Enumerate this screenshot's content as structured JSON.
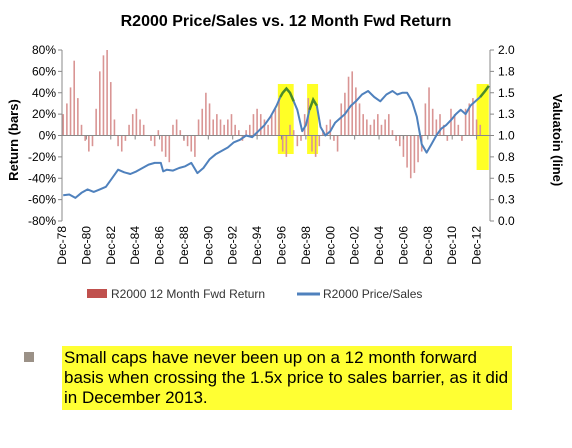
{
  "chart_data": {
    "type": "bar+line",
    "title": "R2000 Price/Sales vs. 12 Month Fwd Return",
    "ylabel_left": "Return (bars)",
    "ylabel_right": "Valuatoin (line)",
    "y_left_ticks": [
      "80%",
      "60%",
      "40%",
      "20%",
      "0%",
      "-20%",
      "-40%",
      "-60%",
      "-80%"
    ],
    "y_right_ticks": [
      "2.0",
      "1.8",
      "1.5",
      "1.3",
      "1.0",
      "0.8",
      "0.5",
      "0.3",
      "0.0"
    ],
    "y_left_range": [
      -80,
      80
    ],
    "y_right_range": [
      0,
      2
    ],
    "x_ticks": [
      "Dec-78",
      "Dec-80",
      "Dec-82",
      "Dec-84",
      "Dec-86",
      "Dec-88",
      "Dec-90",
      "Dec-92",
      "Dec-94",
      "Dec-96",
      "Dec-98",
      "Dec-00",
      "Dec-02",
      "Dec-04",
      "Dec-06",
      "Dec-08",
      "Dec-10",
      "Dec-12"
    ],
    "x_range": [
      1978.9,
      2014.0
    ],
    "series": [
      {
        "name": "R2000 12 Month Fwd Return",
        "type": "bar",
        "color": "#d99594",
        "points": [
          [
            1979.0,
            20
          ],
          [
            1979.3,
            30
          ],
          [
            1979.6,
            45
          ],
          [
            1979.9,
            70
          ],
          [
            1980.2,
            35
          ],
          [
            1980.5,
            10
          ],
          [
            1980.8,
            -5
          ],
          [
            1981.1,
            -15
          ],
          [
            1981.4,
            -10
          ],
          [
            1981.7,
            25
          ],
          [
            1982.0,
            60
          ],
          [
            1982.3,
            75
          ],
          [
            1982.6,
            80
          ],
          [
            1982.9,
            50
          ],
          [
            1983.2,
            15
          ],
          [
            1983.5,
            -10
          ],
          [
            1983.8,
            -15
          ],
          [
            1984.1,
            -5
          ],
          [
            1984.4,
            10
          ],
          [
            1984.7,
            20
          ],
          [
            1985.0,
            25
          ],
          [
            1985.3,
            15
          ],
          [
            1985.6,
            10
          ],
          [
            1985.9,
            0
          ],
          [
            1986.2,
            -5
          ],
          [
            1986.5,
            -10
          ],
          [
            1986.8,
            5
          ],
          [
            1987.1,
            -15
          ],
          [
            1987.4,
            -20
          ],
          [
            1987.7,
            -25
          ],
          [
            1988.0,
            10
          ],
          [
            1988.3,
            15
          ],
          [
            1988.6,
            5
          ],
          [
            1988.9,
            -5
          ],
          [
            1989.2,
            -10
          ],
          [
            1989.5,
            -15
          ],
          [
            1989.8,
            -20
          ],
          [
            1990.1,
            15
          ],
          [
            1990.4,
            25
          ],
          [
            1990.7,
            40
          ],
          [
            1991.0,
            30
          ],
          [
            1991.3,
            15
          ],
          [
            1991.6,
            20
          ],
          [
            1991.9,
            15
          ],
          [
            1992.2,
            10
          ],
          [
            1992.5,
            15
          ],
          [
            1992.8,
            20
          ],
          [
            1993.1,
            10
          ],
          [
            1993.4,
            5
          ],
          [
            1993.7,
            -5
          ],
          [
            1994.0,
            5
          ],
          [
            1994.3,
            10
          ],
          [
            1994.6,
            20
          ],
          [
            1994.9,
            25
          ],
          [
            1995.2,
            20
          ],
          [
            1995.5,
            15
          ],
          [
            1995.8,
            10
          ],
          [
            1996.1,
            20
          ],
          [
            1996.4,
            25
          ],
          [
            1996.7,
            35
          ],
          [
            1997.0,
            -15
          ],
          [
            1997.3,
            -20
          ],
          [
            1997.6,
            10
          ],
          [
            1997.9,
            5
          ],
          [
            1998.2,
            -10
          ],
          [
            1998.5,
            -5
          ],
          [
            1998.8,
            20
          ],
          [
            1999.1,
            35
          ],
          [
            1999.4,
            -15
          ],
          [
            1999.7,
            -20
          ],
          [
            2000.0,
            -10
          ],
          [
            2000.3,
            5
          ],
          [
            2000.6,
            10
          ],
          [
            2000.9,
            15
          ],
          [
            2001.2,
            -5
          ],
          [
            2001.5,
            -15
          ],
          [
            2001.8,
            30
          ],
          [
            2002.1,
            40
          ],
          [
            2002.4,
            55
          ],
          [
            2002.7,
            60
          ],
          [
            2003.0,
            45
          ],
          [
            2003.3,
            30
          ],
          [
            2003.6,
            20
          ],
          [
            2003.9,
            15
          ],
          [
            2004.2,
            10
          ],
          [
            2004.5,
            15
          ],
          [
            2004.8,
            20
          ],
          [
            2005.1,
            10
          ],
          [
            2005.4,
            15
          ],
          [
            2005.7,
            20
          ],
          [
            2006.0,
            5
          ],
          [
            2006.3,
            -5
          ],
          [
            2006.6,
            -10
          ],
          [
            2006.9,
            -20
          ],
          [
            2007.2,
            -30
          ],
          [
            2007.5,
            -40
          ],
          [
            2007.8,
            -35
          ],
          [
            2008.1,
            -25
          ],
          [
            2008.4,
            -15
          ],
          [
            2008.7,
            30
          ],
          [
            2009.0,
            45
          ],
          [
            2009.3,
            25
          ],
          [
            2009.6,
            15
          ],
          [
            2009.9,
            20
          ],
          [
            2010.2,
            10
          ],
          [
            2010.5,
            -5
          ],
          [
            2010.8,
            25
          ],
          [
            2011.1,
            20
          ],
          [
            2011.4,
            10
          ],
          [
            2011.7,
            -5
          ],
          [
            2012.0,
            25
          ],
          [
            2012.3,
            30
          ],
          [
            2012.6,
            35
          ],
          [
            2012.9,
            15
          ],
          [
            2013.2,
            10
          ]
        ]
      },
      {
        "name": "R2000 Price/Sales",
        "type": "line",
        "color": "#4f81bd",
        "points": [
          [
            1979.0,
            0.3
          ],
          [
            1979.5,
            0.31
          ],
          [
            1980.0,
            0.27
          ],
          [
            1980.5,
            0.33
          ],
          [
            1981.0,
            0.37
          ],
          [
            1981.5,
            0.34
          ],
          [
            1982.0,
            0.37
          ],
          [
            1982.5,
            0.4
          ],
          [
            1983.0,
            0.5
          ],
          [
            1983.5,
            0.6
          ],
          [
            1984.0,
            0.57
          ],
          [
            1984.5,
            0.55
          ],
          [
            1985.0,
            0.58
          ],
          [
            1985.5,
            0.62
          ],
          [
            1986.0,
            0.66
          ],
          [
            1986.5,
            0.68
          ],
          [
            1987.0,
            0.68
          ],
          [
            1987.2,
            0.58
          ],
          [
            1987.5,
            0.6
          ],
          [
            1988.0,
            0.59
          ],
          [
            1988.5,
            0.62
          ],
          [
            1989.0,
            0.64
          ],
          [
            1989.5,
            0.68
          ],
          [
            1990.0,
            0.56
          ],
          [
            1990.5,
            0.62
          ],
          [
            1991.0,
            0.72
          ],
          [
            1991.5,
            0.78
          ],
          [
            1992.0,
            0.82
          ],
          [
            1992.5,
            0.86
          ],
          [
            1993.0,
            0.92
          ],
          [
            1993.5,
            0.95
          ],
          [
            1994.0,
            1.0
          ],
          [
            1994.5,
            0.98
          ],
          [
            1995.0,
            1.05
          ],
          [
            1995.5,
            1.12
          ],
          [
            1996.0,
            1.22
          ],
          [
            1996.5,
            1.35
          ],
          [
            1996.8,
            1.45
          ],
          [
            1997.0,
            1.5
          ],
          [
            1997.3,
            1.55
          ],
          [
            1997.6,
            1.5
          ],
          [
            1997.9,
            1.4
          ],
          [
            1998.2,
            1.3
          ],
          [
            1998.6,
            1.05
          ],
          [
            1998.9,
            1.12
          ],
          [
            1999.2,
            1.3
          ],
          [
            1999.5,
            1.42
          ],
          [
            1999.8,
            1.35
          ],
          [
            2000.1,
            1.1
          ],
          [
            2000.5,
            1.0
          ],
          [
            2000.9,
            1.05
          ],
          [
            2001.3,
            1.15
          ],
          [
            2001.7,
            1.2
          ],
          [
            2002.1,
            1.25
          ],
          [
            2002.6,
            1.35
          ],
          [
            2003.0,
            1.4
          ],
          [
            2003.5,
            1.48
          ],
          [
            2004.0,
            1.52
          ],
          [
            2004.5,
            1.45
          ],
          [
            2005.0,
            1.4
          ],
          [
            2005.5,
            1.48
          ],
          [
            2006.0,
            1.52
          ],
          [
            2006.4,
            1.48
          ],
          [
            2006.8,
            1.5
          ],
          [
            2007.2,
            1.5
          ],
          [
            2007.6,
            1.4
          ],
          [
            2008.0,
            1.22
          ],
          [
            2008.4,
            0.9
          ],
          [
            2008.8,
            0.8
          ],
          [
            2009.2,
            0.9
          ],
          [
            2009.6,
            1.0
          ],
          [
            2010.0,
            1.08
          ],
          [
            2010.4,
            1.12
          ],
          [
            2010.8,
            1.18
          ],
          [
            2011.2,
            1.25
          ],
          [
            2011.6,
            1.3
          ],
          [
            2012.0,
            1.25
          ],
          [
            2012.4,
            1.35
          ],
          [
            2012.8,
            1.4
          ],
          [
            2013.2,
            1.45
          ],
          [
            2013.6,
            1.52
          ],
          [
            2013.9,
            1.58
          ]
        ]
      }
    ],
    "highlights": [
      {
        "x0": 1996.6,
        "x1": 1997.9
      },
      {
        "x0": 1999.0,
        "x1": 1999.9
      },
      {
        "x0": 2012.9,
        "x1": 2013.9
      }
    ],
    "highlight_color": "#ffff00",
    "legend": {
      "placement": "bottom"
    },
    "grid": false
  },
  "note": {
    "text": "Small caps have never been up on a 12 month forward basis when crossing the 1.5x price to sales barrier, as it did in December 2013.",
    "highlight": "#ffff33",
    "bullet_color": "#9b9187"
  }
}
